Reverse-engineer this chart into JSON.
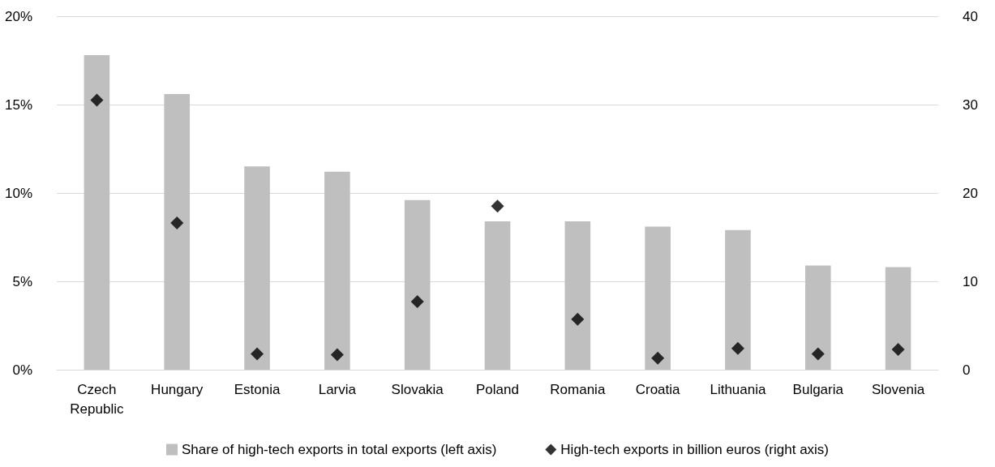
{
  "chart_data": {
    "type": "bar",
    "categories": [
      "Czech\nRepublic",
      "Hungary",
      "Estonia",
      "Larvia",
      "Slovakia",
      "Poland",
      "Romania",
      "Croatia",
      "Lithuania",
      "Bulgaria",
      "Slovenia"
    ],
    "series": [
      {
        "name": "Share of high-tech exports in total exports (left axis)",
        "color": "#bfbfbf",
        "values": [
          17.8,
          15.6,
          11.5,
          11.2,
          9.6,
          8.4,
          8.4,
          8.1,
          7.9,
          5.9,
          5.8
        ]
      },
      {
        "name": "High-tech exports in billion euros (right axis)",
        "type": "scatter",
        "axis": "y2",
        "marker": "diamond",
        "color": "#000000",
        "values": [
          30.5,
          16.6,
          1.8,
          1.7,
          7.7,
          18.5,
          5.7,
          1.3,
          2.4,
          1.8,
          2.3
        ]
      }
    ],
    "ylim": [
      0,
      20
    ],
    "yticks": [
      {
        "value": 0,
        "label": "0%"
      },
      {
        "value": 5,
        "label": "5%"
      },
      {
        "value": 10,
        "label": "10%"
      },
      {
        "value": 15,
        "label": "15%"
      },
      {
        "value": 20,
        "label": "20%"
      }
    ],
    "y2lim": [
      0,
      40
    ],
    "y2ticks": [
      0,
      10,
      20,
      30,
      40
    ],
    "grid": "y",
    "legend": "bottom"
  }
}
